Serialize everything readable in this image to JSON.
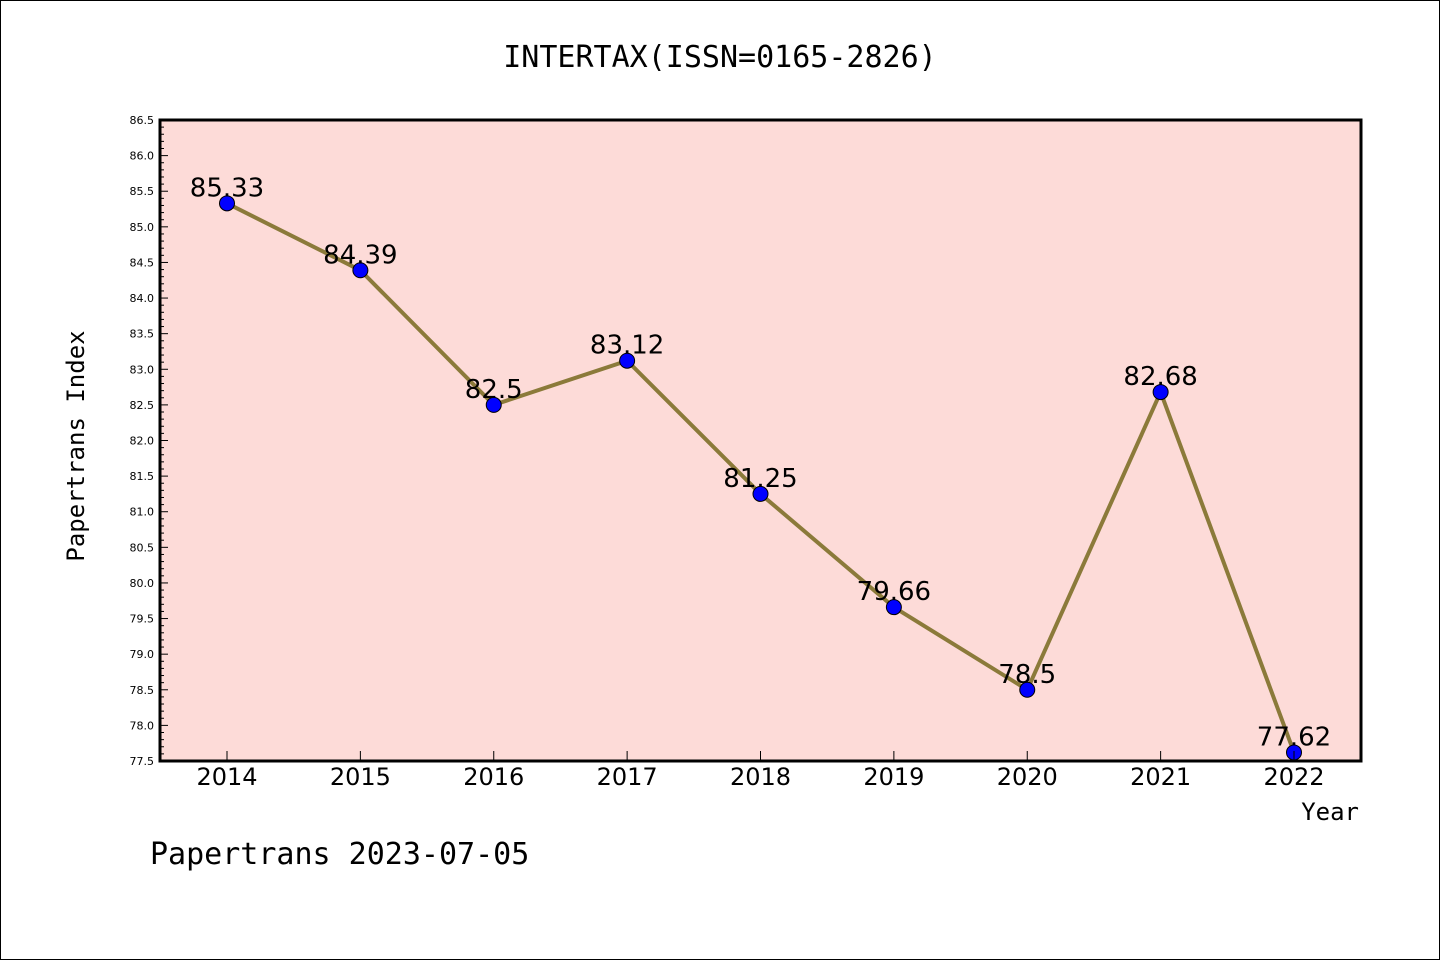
{
  "title": "INTERTAX(ISSN=0165-2826)",
  "footer": "Papertrans 2023-07-05",
  "colors": {
    "plot_background": "#fddbd8",
    "line": "#8b7a3a",
    "marker": "#0000ff",
    "axis": "#000000"
  },
  "chart_data": {
    "type": "line",
    "title": "INTERTAX(ISSN=0165-2826)",
    "xlabel": "Year",
    "ylabel": "Papertrans Index",
    "categories": [
      "2014",
      "2015",
      "2016",
      "2017",
      "2018",
      "2019",
      "2020",
      "2021",
      "2022"
    ],
    "values": [
      85.33,
      84.39,
      82.5,
      83.12,
      81.25,
      79.66,
      78.5,
      82.68,
      77.62
    ],
    "data_labels": [
      "85.33",
      "84.39",
      "82.5",
      "83.12",
      "81.25",
      "79.66",
      "78.5",
      "82.68",
      "77.62"
    ],
    "ylim": [
      77.5,
      86.5
    ],
    "yticks": [
      "77.5",
      "78.0",
      "78.5",
      "79.0",
      "79.5",
      "80.0",
      "80.5",
      "81.0",
      "81.5",
      "82.0",
      "82.5",
      "83.0",
      "83.5",
      "84.0",
      "84.5",
      "85.0",
      "85.5",
      "86.0",
      "86.5"
    ],
    "grid": false,
    "legend": "none"
  }
}
